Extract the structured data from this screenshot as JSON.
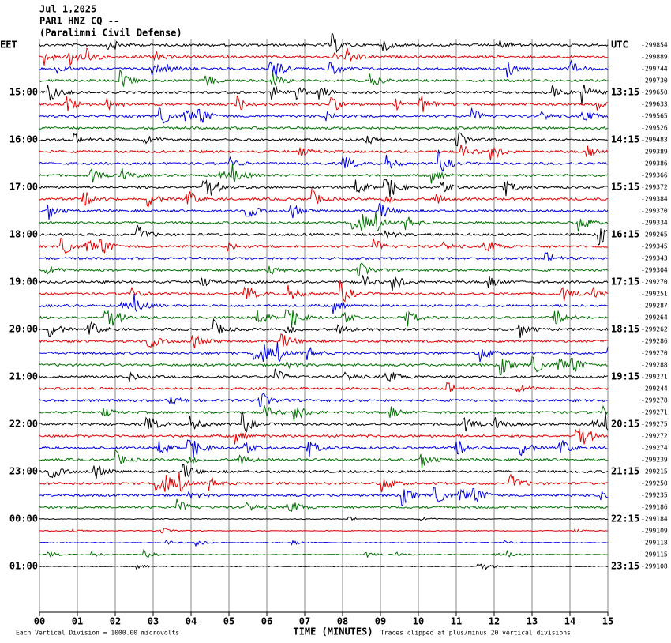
{
  "header": {
    "lines": [
      "Jul 1,2025",
      "PAR1 HNZ CQ --",
      "(Paralimni Civil Defense)"
    ]
  },
  "left_labels": [
    "EET",
    "15:00",
    "16:00",
    "17:00",
    "18:00",
    "19:00",
    "20:00",
    "21:00",
    "22:00",
    "23:00",
    "00:00",
    "01:00"
  ],
  "right_labels": [
    "UTC",
    "13:15",
    "14:15",
    "15:15",
    "16:15",
    "17:15",
    "18:15",
    "19:15",
    "20:15",
    "21:15",
    "22:15",
    "23:15"
  ],
  "right_values": [
    "-299854",
    "-299889",
    "-299744",
    "-299730",
    "-299650",
    "-299633",
    "-299565",
    "-299526",
    "-299483",
    "-299389",
    "-299386",
    "-299366",
    "-299372",
    "-299384",
    "-299370",
    "-299334",
    "-299265",
    "-299345",
    "-299343",
    "-299304",
    "-299270",
    "-299251",
    "-299287",
    "-299264",
    "-299262",
    "-299286",
    "-299270",
    "-299288",
    "-299271",
    "-299244",
    "-299278",
    "-299271",
    "-299275",
    "-299272",
    "-299274",
    "-299239",
    "-299215",
    "-299250",
    "-299235",
    "-299186",
    "-299184",
    "-299109",
    "-299118",
    "-299115",
    "-299108"
  ],
  "x_labels": [
    "00",
    "01",
    "02",
    "03",
    "04",
    "05",
    "06",
    "07",
    "08",
    "09",
    "10",
    "11",
    "12",
    "13",
    "14",
    "15"
  ],
  "axis_title": "TIME (MINUTES)",
  "footer": {
    "scale": "Each Vertical Division = 1000.00 microvolts",
    "clip": "Traces clipped at plus/minus 20 vertical divisions"
  }
}
